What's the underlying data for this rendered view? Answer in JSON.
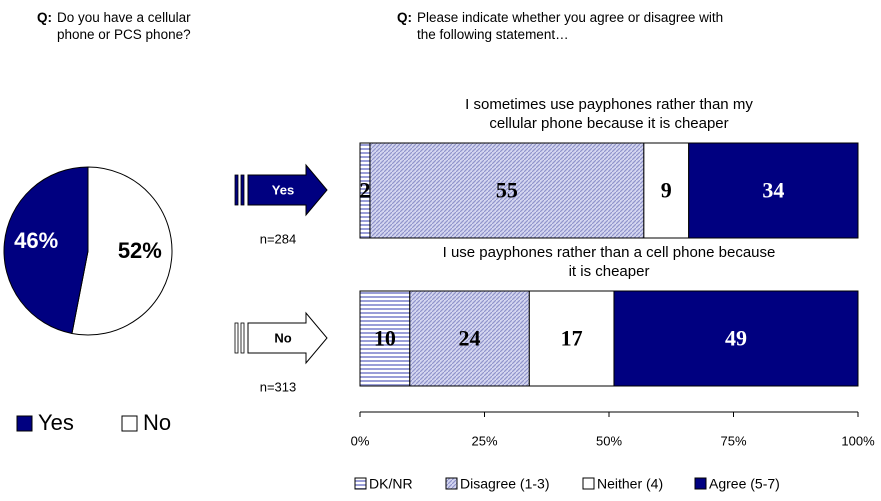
{
  "chart_data": [
    {
      "type": "pie",
      "question_prefix": "Q:",
      "question": [
        "Do you have a cellular",
        "phone or PCS phone?"
      ],
      "categories": [
        "Yes",
        "No"
      ],
      "values": [
        46,
        52
      ],
      "value_labels": [
        "46%",
        "52%"
      ],
      "colors": [
        "#000080",
        "#ffffff"
      ],
      "label_colors": [
        "#ffffff",
        "#000000"
      ]
    },
    {
      "type": "stacked-bar-horizontal",
      "question_prefix": "Q:",
      "question": [
        "Please indicate whether you agree or disagree with",
        "the following statement…"
      ],
      "categories": [
        [
          "I sometimes use payphones rather than my",
          "cellular phone because it is cheaper"
        ],
        [
          "I use payphones rather than a cell phone because",
          "it is cheaper"
        ]
      ],
      "groups": [
        {
          "label": "Yes",
          "n": "n=284",
          "color": "#000080"
        },
        {
          "label": "No",
          "n": "n=313",
          "color": "#ffffff"
        }
      ],
      "series": [
        {
          "name": "DK/NR",
          "color": "#c3c6ea",
          "pattern": "horizontal",
          "label_color": "#000000",
          "values": [
            2,
            10
          ]
        },
        {
          "name": "Disagree (1-3)",
          "color": "#b9bce2",
          "pattern": "diagonal",
          "label_color": "#000000",
          "values": [
            55,
            24
          ]
        },
        {
          "name": "Neither (4)",
          "color": "#ffffff",
          "pattern": "none",
          "label_color": "#000000",
          "values": [
            9,
            17
          ]
        },
        {
          "name": "Agree (5-7)",
          "color": "#000080",
          "pattern": "none",
          "label_color": "#ffffff",
          "values": [
            34,
            49
          ]
        }
      ],
      "xlim": [
        0,
        100
      ],
      "xticks": [
        {
          "value": 0,
          "label": "0%"
        },
        {
          "value": 25,
          "label": "25%"
        },
        {
          "value": 50,
          "label": "50%"
        },
        {
          "value": 75,
          "label": "75%"
        },
        {
          "value": 100,
          "label": "100%"
        }
      ]
    }
  ]
}
